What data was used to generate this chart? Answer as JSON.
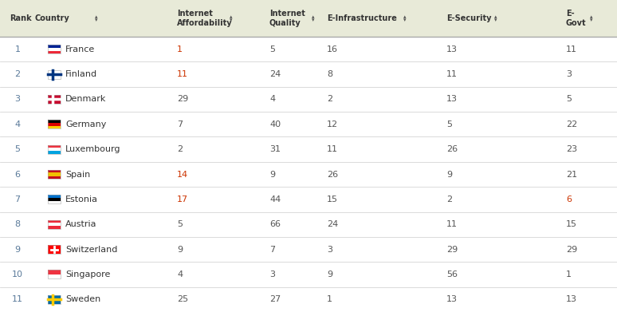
{
  "header_bg": "#e8ead8",
  "row_bg_white": "#ffffff",
  "header_text_color": "#333333",
  "rank_color": "#5a7a9a",
  "country_color": "#333333",
  "value_color": "#555555",
  "red_value_color": "#cc3300",
  "border_color": "#cccccc",
  "rows": [
    {
      "rank": "1",
      "country": "France",
      "ia": "1",
      "iq": "5",
      "ei": "16",
      "es": "13",
      "eg": "11",
      "ia_red": true,
      "eg_red": false
    },
    {
      "rank": "2",
      "country": "Finland",
      "ia": "11",
      "iq": "24",
      "ei": "8",
      "es": "11",
      "eg": "3",
      "ia_red": true,
      "eg_red": false
    },
    {
      "rank": "3",
      "country": "Denmark",
      "ia": "29",
      "iq": "4",
      "ei": "2",
      "es": "13",
      "eg": "5",
      "ia_red": false,
      "eg_red": false
    },
    {
      "rank": "4",
      "country": "Germany",
      "ia": "7",
      "iq": "40",
      "ei": "12",
      "es": "5",
      "eg": "22",
      "ia_red": false,
      "eg_red": false
    },
    {
      "rank": "5",
      "country": "Luxembourg",
      "ia": "2",
      "iq": "31",
      "ei": "11",
      "es": "26",
      "eg": "23",
      "ia_red": false,
      "eg_red": false
    },
    {
      "rank": "6",
      "country": "Spain",
      "ia": "14",
      "iq": "9",
      "ei": "26",
      "es": "9",
      "eg": "21",
      "ia_red": true,
      "eg_red": false
    },
    {
      "rank": "7",
      "country": "Estonia",
      "ia": "17",
      "iq": "44",
      "ei": "15",
      "es": "2",
      "eg": "6",
      "ia_red": true,
      "eg_red": true
    },
    {
      "rank": "8",
      "country": "Austria",
      "ia": "5",
      "iq": "66",
      "ei": "24",
      "es": "11",
      "eg": "15",
      "ia_red": false,
      "eg_red": false
    },
    {
      "rank": "9",
      "country": "Switzerland",
      "ia": "9",
      "iq": "7",
      "ei": "3",
      "es": "29",
      "eg": "29",
      "ia_red": false,
      "eg_red": false
    },
    {
      "rank": "10",
      "country": "Singapore",
      "ia": "4",
      "iq": "3",
      "ei": "9",
      "es": "56",
      "eg": "1",
      "ia_red": false,
      "eg_red": false
    },
    {
      "rank": "11",
      "country": "Sweden",
      "ia": "25",
      "iq": "27",
      "ei": "1",
      "es": "13",
      "eg": "13",
      "ia_red": false,
      "eg_red": false
    }
  ],
  "flag_colors": {
    "France": [
      [
        "#002395",
        0.33
      ],
      [
        "#ffffff",
        0.34
      ],
      [
        "#ED2939",
        0.33
      ]
    ],
    "Finland": [
      [
        "#ffffff",
        1.0
      ]
    ],
    "Denmark": [
      [
        "#C60C30",
        1.0
      ]
    ],
    "Germany": [
      [
        "#000000",
        0.33
      ],
      [
        "#DD0000",
        0.34
      ],
      [
        "#FFCE00",
        0.33
      ]
    ],
    "Luxembourg": [
      [
        "#EF3340",
        0.33
      ],
      [
        "#ffffff",
        0.34
      ],
      [
        "#00A3E0",
        0.33
      ]
    ],
    "Spain": [
      [
        "#c60b1e",
        0.25
      ],
      [
        "#f1bf00",
        0.5
      ],
      [
        "#c60b1e",
        0.25
      ]
    ],
    "Estonia": [
      [
        "#0072CE",
        0.33
      ],
      [
        "#000000",
        0.34
      ],
      [
        "#ffffff",
        0.33
      ]
    ],
    "Austria": [
      [
        "#ED2939",
        0.33
      ],
      [
        "#ffffff",
        0.34
      ],
      [
        "#ED2939",
        0.33
      ]
    ],
    "Switzerland": [
      [
        "#FF0000",
        1.0
      ]
    ],
    "Singapore": [
      [
        "#EF3340",
        0.5
      ],
      [
        "#ffffff",
        0.5
      ]
    ],
    "Sweden": [
      [
        "#006AA7",
        1.0
      ]
    ]
  }
}
